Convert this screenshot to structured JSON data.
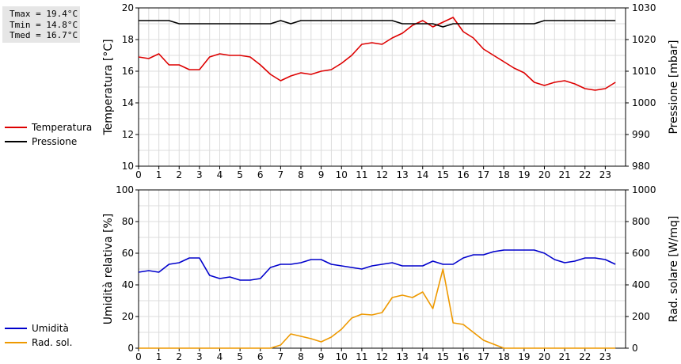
{
  "stats": [
    "Tmax = 19.4°C",
    "Tmin = 14.8°C",
    "Tmed = 16.7°C"
  ],
  "chart_data": [
    {
      "type": "line",
      "xlim": [
        0,
        24
      ],
      "xticks": [
        0,
        1,
        2,
        3,
        4,
        5,
        6,
        7,
        8,
        9,
        10,
        11,
        12,
        13,
        14,
        15,
        16,
        17,
        18,
        19,
        20,
        21,
        22,
        23
      ],
      "grid": true,
      "legend_placement": "left",
      "ylabel": "Temperatura [°C]",
      "ylim": [
        10,
        20
      ],
      "yticks": [
        10,
        12,
        14,
        16,
        18,
        20
      ],
      "y2label": "Pressione [mbar]",
      "y2lim": [
        980,
        1030
      ],
      "y2ticks": [
        980,
        990,
        1000,
        1010,
        1020,
        1030
      ],
      "series": [
        {
          "name": "Temperatura",
          "axis": "left",
          "color": "#dd0000",
          "x": [
            0,
            0.5,
            1,
            1.5,
            2,
            2.5,
            3,
            3.5,
            4,
            4.5,
            5,
            5.5,
            6,
            6.5,
            7,
            7.5,
            8,
            8.5,
            9,
            9.5,
            10,
            10.5,
            11,
            11.5,
            12,
            12.5,
            13,
            13.5,
            14,
            14.5,
            15,
            15.5,
            16,
            16.5,
            17,
            17.5,
            18,
            18.5,
            19,
            19.5,
            20,
            20.5,
            21,
            21.5,
            22,
            22.5,
            23,
            23.5
          ],
          "y": [
            16.9,
            16.8,
            17.1,
            16.4,
            16.4,
            16.1,
            16.1,
            16.9,
            17.1,
            17.0,
            17.0,
            16.9,
            16.4,
            15.8,
            15.4,
            15.7,
            15.9,
            15.8,
            16.0,
            16.1,
            16.5,
            17.0,
            17.7,
            17.8,
            17.7,
            18.1,
            18.4,
            18.9,
            19.2,
            18.8,
            19.1,
            19.4,
            18.5,
            18.1,
            17.4,
            17.0,
            16.6,
            16.2,
            15.9,
            15.3,
            15.1,
            15.3,
            15.4,
            15.2,
            14.9,
            14.8,
            14.9,
            15.3
          ]
        },
        {
          "name": "Pressione",
          "axis": "right",
          "color": "#000000",
          "x": [
            0,
            1.5,
            2,
            6.5,
            7,
            7.5,
            8,
            12.5,
            13,
            14.5,
            15,
            15.5,
            16,
            19.5,
            20,
            23.5
          ],
          "y": [
            1026,
            1026,
            1025,
            1025,
            1026,
            1025,
            1026,
            1026,
            1025,
            1025,
            1024,
            1025,
            1025,
            1025,
            1026,
            1026
          ]
        }
      ]
    },
    {
      "type": "line",
      "xlim": [
        0,
        24
      ],
      "xticks": [
        0,
        1,
        2,
        3,
        4,
        5,
        6,
        7,
        8,
        9,
        10,
        11,
        12,
        13,
        14,
        15,
        16,
        17,
        18,
        19,
        20,
        21,
        22,
        23
      ],
      "grid": true,
      "legend_placement": "left",
      "ylabel": "Umidità relativa [%]",
      "ylim": [
        0,
        100
      ],
      "yticks": [
        0,
        20,
        40,
        60,
        80,
        100
      ],
      "y2label": "Rad. solare [W/mq]",
      "y2lim": [
        0,
        1000
      ],
      "y2ticks": [
        0,
        200,
        400,
        600,
        800,
        1000
      ],
      "series": [
        {
          "name": "Umidità",
          "axis": "left",
          "color": "#0000cc",
          "x": [
            0,
            0.5,
            1,
            1.5,
            2,
            2.5,
            3,
            3.5,
            4,
            4.5,
            5,
            5.5,
            6,
            6.5,
            7,
            7.5,
            8,
            8.5,
            9,
            9.5,
            10,
            10.5,
            11,
            11.5,
            12,
            12.5,
            13,
            13.5,
            14,
            14.5,
            15,
            15.5,
            16,
            16.5,
            17,
            17.5,
            18,
            18.5,
            19,
            19.5,
            20,
            20.5,
            21,
            21.5,
            22,
            22.5,
            23,
            23.5
          ],
          "y": [
            48,
            49,
            48,
            53,
            54,
            57,
            57,
            46,
            44,
            45,
            43,
            43,
            44,
            51,
            53,
            53,
            54,
            56,
            56,
            53,
            52,
            51,
            50,
            52,
            53,
            54,
            52,
            52,
            52,
            55,
            53,
            53,
            57,
            59,
            59,
            61,
            62,
            62,
            62,
            62,
            60,
            56,
            54,
            55,
            57,
            57,
            56,
            53
          ]
        },
        {
          "name": "Rad. sol.",
          "axis": "right",
          "color": "#ee9900",
          "x": [
            0,
            6.5,
            7,
            7.5,
            8,
            8.5,
            9,
            9.5,
            10,
            10.5,
            11,
            11.5,
            12,
            12.5,
            13,
            13.5,
            14,
            14.5,
            15,
            15.5,
            16,
            16.5,
            17,
            17.5,
            18,
            23.5
          ],
          "y": [
            0,
            0,
            20,
            90,
            75,
            60,
            40,
            70,
            120,
            190,
            215,
            210,
            225,
            320,
            335,
            320,
            355,
            250,
            500,
            160,
            150,
            100,
            50,
            25,
            0,
            0
          ]
        }
      ]
    }
  ]
}
